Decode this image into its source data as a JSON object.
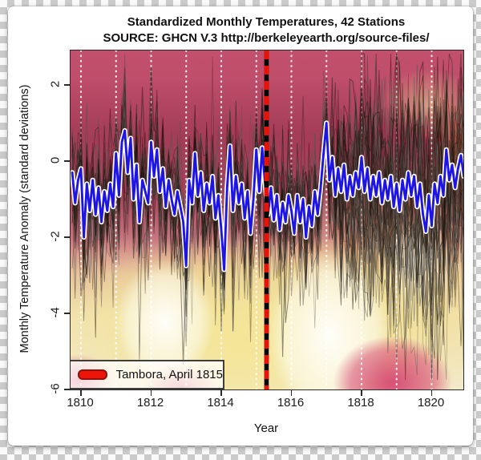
{
  "title": {
    "line1": "Standardized Monthly Temperatures, 42 Stations",
    "line2": "SOURCE: GHCN V.3 http://berkeleyearth.org/source-files/"
  },
  "axes": {
    "x": {
      "label": "Year",
      "ticks": [
        1810,
        1812,
        1814,
        1816,
        1818,
        1820
      ],
      "range": [
        1809.7,
        1820.92
      ]
    },
    "y": {
      "label": "Monthly Temperature Anomaly (standard deviations)",
      "ticks": [
        2,
        0,
        -2,
        -4,
        -6
      ],
      "range": [
        -6,
        2.9
      ]
    }
  },
  "gridlines_years": [
    1810,
    1811,
    1812,
    1813,
    1814,
    1815,
    1816,
    1817,
    1818,
    1819,
    1820
  ],
  "legend": {
    "label": "Tambora, April 1815",
    "marker_color": "#ed1409",
    "marker_outline": "#8d120b"
  },
  "colors": {
    "mean_line": "#1e15e4",
    "mean_outline": "#ffffff",
    "event_red": "#e51408",
    "event_black": "#050505",
    "gridline": "rgba(255,255,255,0.92)",
    "station_dark": "26,18,8",
    "station_gray": "82,80,76"
  },
  "chart_data": {
    "type": "line",
    "title": "Standardized Monthly Temperatures, 42 Stations",
    "subtitle": "SOURCE: GHCN V.3 http://berkeleyearth.org/source-files/",
    "xlabel": "Year",
    "ylabel": "Monthly Temperature Anomaly (standard deviations)",
    "xlim": [
      1809.7,
      1820.92
    ],
    "ylim": [
      -6,
      2.9
    ],
    "grid": "white dotted vertical lines at each year",
    "legend_position": "bottom-left",
    "x_start": 1809.75,
    "x_step": 0.0833333,
    "series": [
      {
        "name": "42-station mean (monthly, standardized)",
        "color": "#1e15e4",
        "values": [
          -0.3,
          -1.1,
          -0.5,
          -0.2,
          -2.0,
          -0.6,
          -1.3,
          -0.5,
          -1.4,
          -0.7,
          -1.6,
          -0.8,
          -1.3,
          -0.6,
          -1.2,
          0.2,
          -0.9,
          0.5,
          0.8,
          -0.3,
          0.6,
          -1.0,
          -0.1,
          -1.6,
          -0.5,
          -0.8,
          -1.1,
          0.5,
          -0.4,
          0.3,
          -0.8,
          -0.2,
          -1.2,
          -0.5,
          -1.0,
          -1.4,
          -0.8,
          -1.2,
          -1.6,
          -2.75,
          -0.5,
          -1.1,
          0.2,
          -0.9,
          -0.3,
          -1.3,
          -0.6,
          -1.1,
          -0.4,
          -1.5,
          -0.9,
          -1.8,
          -2.85,
          -0.7,
          0.4,
          -1.3,
          -0.4,
          -1.1,
          -0.6,
          -1.5,
          -0.8,
          -1.9,
          -1.0,
          0.3,
          -0.8,
          0.35,
          -0.6,
          -1.4,
          -0.7,
          -1.55,
          -0.9,
          -1.8,
          -1.1,
          -1.6,
          -0.9,
          -1.3,
          -1.9,
          -0.9,
          -1.6,
          -1.0,
          -2.0,
          -1.2,
          -1.7,
          -0.8,
          -1.4,
          -0.7,
          0.2,
          1.0,
          -0.5,
          0.1,
          -0.9,
          -0.2,
          -0.8,
          -0.1,
          -1.0,
          -0.4,
          -0.9,
          -0.3,
          -0.7,
          0.1,
          -0.8,
          -0.2,
          -1.0,
          -0.4,
          -0.9,
          -0.3,
          -1.1,
          -0.5,
          -1.0,
          -0.4,
          -1.2,
          -0.6,
          -1.3,
          -0.5,
          -1.0,
          -0.3,
          -0.9,
          -0.4,
          -1.2,
          -0.6,
          -1.4,
          -1.85,
          -0.9,
          -1.7,
          -0.6,
          -1.1,
          -0.4,
          -0.9,
          0.3,
          -0.5,
          -0.1,
          -0.7,
          -0.2,
          0.15,
          -0.4
        ]
      }
    ],
    "stations": {
      "count": 42,
      "seed": 11,
      "amp_early": 1.45,
      "amp_late": 2.9,
      "late_start": 1816.8,
      "clip_min": -5.75,
      "clip_max": 2.82,
      "note": "individual station traces drawn as thin dark semi-transparent lines; spread widens strongly after 1817"
    },
    "annotation": {
      "label": "Tambora, April 1815",
      "x": 1815.29,
      "style": "thick vertical red/black dashed line"
    }
  }
}
